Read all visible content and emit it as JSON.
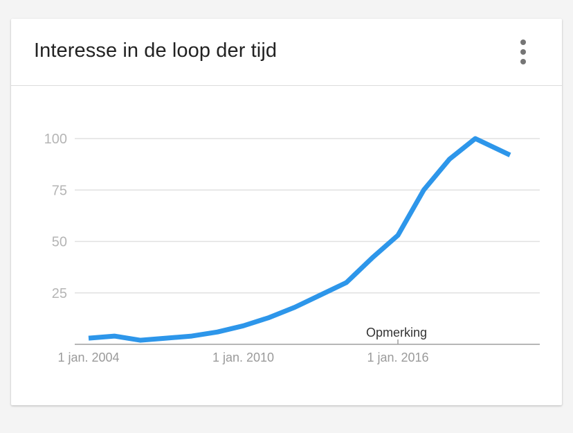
{
  "card": {
    "title": "Interesse in de loop der tijd",
    "menu_icon": "more-vert-icon"
  },
  "colors": {
    "line": "#2d96ea",
    "grid": "#e0e0e0",
    "axis": "#9e9e9e"
  },
  "chart_data": {
    "type": "line",
    "title": "Interesse in de loop der tijd",
    "xlabel": "",
    "ylabel": "",
    "ylim": [
      0,
      100
    ],
    "yticks": [
      25,
      50,
      75,
      100
    ],
    "xlim": [
      2004,
      2021
    ],
    "xticks": [
      {
        "value": 2004,
        "label": "1 jan. 2004"
      },
      {
        "value": 2010,
        "label": "1 jan. 2010"
      },
      {
        "value": 2016,
        "label": "1 jan. 2016"
      }
    ],
    "grid": true,
    "series": [
      {
        "x": [
          2004,
          2005,
          2006,
          2007,
          2008,
          2009,
          2010,
          2011,
          2012,
          2013,
          2014,
          2015,
          2016,
          2017,
          2018,
          2019,
          2020
        ],
        "values": [
          3,
          4,
          2,
          3,
          4,
          6,
          9,
          13,
          18,
          24,
          30,
          42,
          53,
          75,
          90,
          100,
          92
        ]
      }
    ],
    "annotations": [
      {
        "x": 2016,
        "text": "Opmerking"
      }
    ]
  }
}
